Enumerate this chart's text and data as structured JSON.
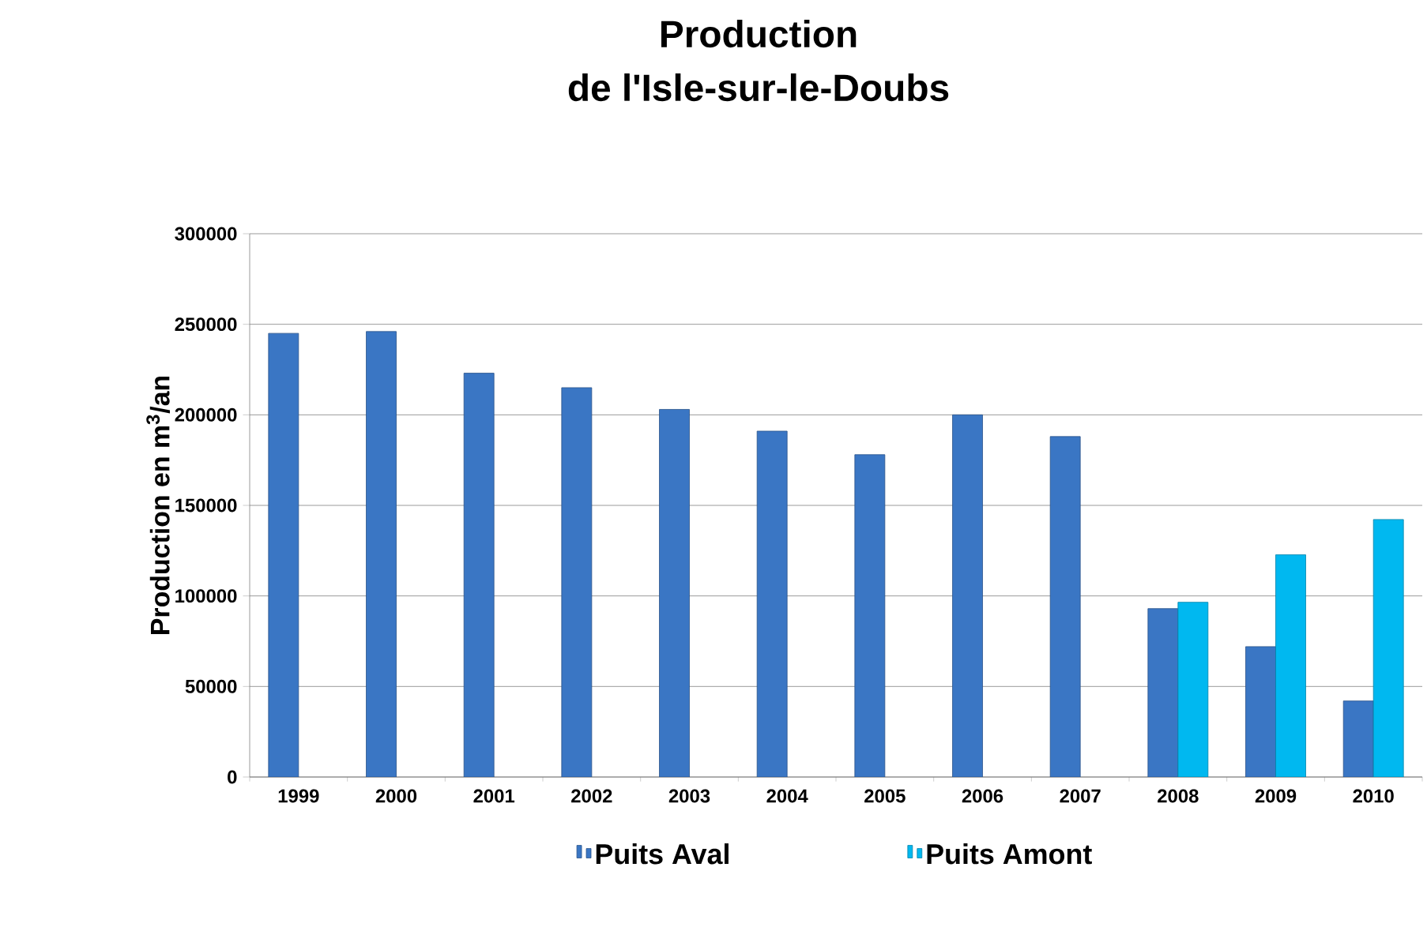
{
  "chart_data": {
    "type": "bar",
    "title": "Production",
    "subtitle": "de l'Isle-sur-le-Doubs",
    "ylabel": "Production en m$^{3}$/an",
    "categories": [
      "1999",
      "2000",
      "2001",
      "2002",
      "2003",
      "2004",
      "2005",
      "2006",
      "2007",
      "2008",
      "2009",
      "2010"
    ],
    "series": [
      {
        "name": "Puits Aval",
        "color": "#3a76c4",
        "values": [
          245000,
          246000,
          223000,
          215000,
          203000,
          191000,
          178000,
          200000,
          188000,
          93000,
          72000,
          42000
        ]
      },
      {
        "name": "Puits Amont",
        "color": "#00b8f0",
        "values": [
          null,
          null,
          null,
          null,
          null,
          null,
          null,
          null,
          null,
          96500,
          122700,
          142200
        ]
      }
    ],
    "ylim": [
      0,
      300000
    ],
    "yticks": [
      0,
      50000,
      100000,
      150000,
      200000,
      250000,
      300000
    ],
    "grid": "y",
    "legend": "bottom"
  }
}
